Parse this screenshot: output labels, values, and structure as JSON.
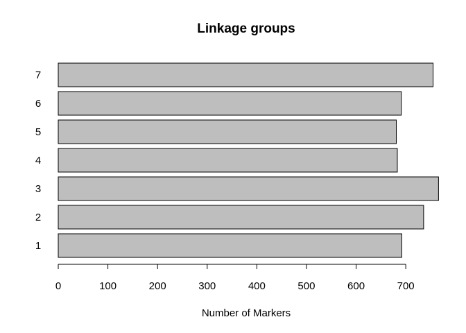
{
  "chart_data": {
    "type": "bar",
    "orientation": "horizontal",
    "title": "Linkage groups",
    "xlabel": "Number of Markers",
    "ylabel": "",
    "categories": [
      "1",
      "2",
      "3",
      "4",
      "5",
      "6",
      "7"
    ],
    "values": [
      692,
      736,
      766,
      683,
      681,
      691,
      755
    ],
    "xlim": [
      0,
      780
    ],
    "x_ticks": [
      0,
      100,
      200,
      300,
      400,
      500,
      600,
      700
    ],
    "grid": false,
    "legend": "none",
    "colors": {
      "bar_fill": "#bebebe",
      "bar_stroke": "#000000",
      "text": "#000000",
      "background": "#ffffff"
    }
  }
}
